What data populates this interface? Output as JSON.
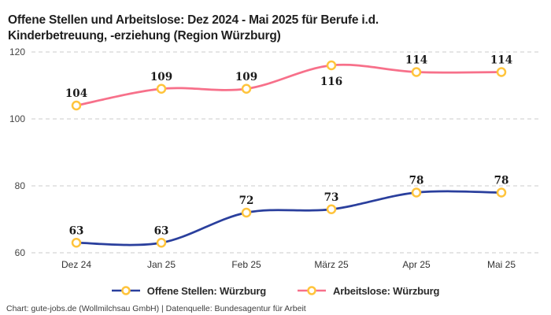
{
  "title": {
    "line1": "Offene Stellen und Arbeitslose: Dez 2024 - Mai 2025 für Berufe i.d.",
    "line2": "Kinderbetreuung, -erziehung (Region Würzburg)"
  },
  "footer": {
    "text": "Chart: gute-jobs.de (Wollmilchsau GmbH) | Datenquelle: Bundesagentur für Arbeit"
  },
  "colors": {
    "offene_stellen_line": "#2A3F9D",
    "arbeitslose_line": "#F7708A",
    "marker_ring": "#FFC43C",
    "marker_fill": "#FFFFFF",
    "gridline": "#CBCBCB",
    "tick_text": "#444444",
    "data_label_text": "#1A1A1A",
    "title_text": "#1F1F1F",
    "background": "#FFFFFF"
  },
  "chart_data": {
    "type": "line",
    "title": "Offene Stellen und Arbeitslose: Dez 2024 - Mai 2025 für Berufe i.d. Kinderbetreuung, -erziehung (Region Würzburg)",
    "categories": [
      "Dez 24",
      "Jan 25",
      "Feb 25",
      "März 25",
      "Apr 25",
      "Mai 25"
    ],
    "series": [
      {
        "name": "Offene Stellen: Würzburg",
        "color": "#2A3F9D",
        "values": [
          63,
          63,
          72,
          73,
          78,
          78
        ],
        "label_below_indices": []
      },
      {
        "name": "Arbeitslose: Würzburg",
        "color": "#F7708A",
        "values": [
          104,
          109,
          109,
          116,
          114,
          114
        ],
        "label_below_indices": [
          3
        ]
      }
    ],
    "yticks": [
      60,
      80,
      100,
      120
    ],
    "ylim": [
      60,
      120
    ],
    "xlabel": "",
    "ylabel": "",
    "grid": "horizontal-dashed",
    "legend_position": "bottom",
    "marker": {
      "shape": "circle",
      "fill": "#FFFFFF",
      "stroke": "#FFC43C"
    },
    "line_style": "smooth"
  }
}
